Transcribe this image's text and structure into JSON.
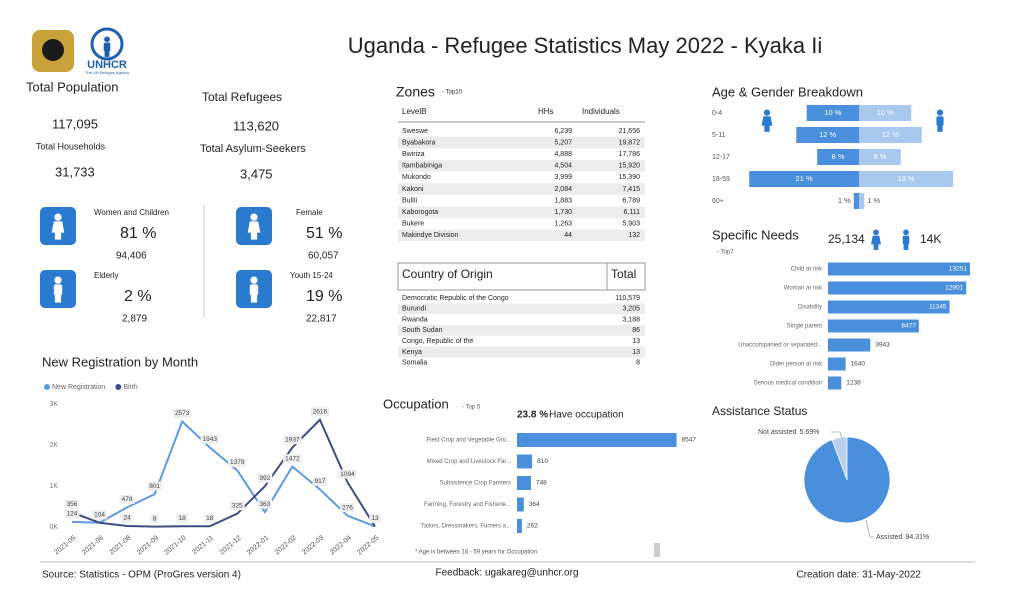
{
  "header": {
    "title": "Uganda - Refugee Statistics May 2022 - Kyaka Ii",
    "logo_text": "UNHCR",
    "logo_subtitle": "The UN Refugee Agency"
  },
  "kpis": [
    {
      "label": "Total Population",
      "value": "117,095"
    },
    {
      "label": "Total Households",
      "value": "31,733"
    },
    {
      "label": "Total Refugees",
      "value": "113,620"
    },
    {
      "label": "Total Asylum-Seekers",
      "value": "3,475"
    }
  ],
  "demographics": [
    {
      "label": "Women and Children",
      "percent": "81 %",
      "count": "94,406"
    },
    {
      "label": "Elderly",
      "percent": "2 %",
      "count": "2,879"
    },
    {
      "label": "Female",
      "percent": "51 %",
      "count": "60,057"
    },
    {
      "label": "Youth 15-24",
      "percent": "19 %",
      "count": "22,817"
    }
  ],
  "zones": {
    "title": "Zones",
    "subtitle": "- Top10",
    "columns": [
      "LevelB",
      "HHs",
      "Individuals"
    ],
    "rows": [
      [
        "Sweswe",
        "6,239",
        "21,656"
      ],
      [
        "Byabakora",
        "5,207",
        "19,872"
      ],
      [
        "Bwiriza",
        "4,888",
        "17,786"
      ],
      [
        "Itambabiniga",
        "4,504",
        "15,920"
      ],
      [
        "Mukondo",
        "3,999",
        "15,390"
      ],
      [
        "Kakoni",
        "2,084",
        "7,415"
      ],
      [
        "Buliti",
        "1,883",
        "6,789"
      ],
      [
        "Kaborogota",
        "1,730",
        "6,111"
      ],
      [
        "Bukere",
        "1,263",
        "5,903"
      ],
      [
        "Makindye Division",
        "44",
        "132"
      ]
    ]
  },
  "countries": {
    "columns": [
      "Country of Origin",
      "Total"
    ],
    "rows": [
      [
        "Democratic Republic of the Congo",
        "110,579"
      ],
      [
        "Burundi",
        "3,205"
      ],
      [
        "Rwanda",
        "3,188"
      ],
      [
        "South Sudan",
        "86"
      ],
      [
        "Congo, Republic of the",
        "13"
      ],
      [
        "Kenya",
        "13"
      ],
      [
        "Somalia",
        "8"
      ]
    ]
  },
  "chart_data": [
    {
      "type": "line",
      "title": "New Registration by Month",
      "categories": [
        "2021-05",
        "2021-06",
        "2021-08",
        "2021-09",
        "2021-10",
        "2021-11",
        "2021-12",
        "2022-01",
        "2022-02",
        "2022-03",
        "2022-04",
        "2022-05"
      ],
      "series": [
        {
          "name": "New Registration",
          "color": "#5b9be0",
          "values": [
            124,
            104,
            478,
            801,
            2573,
            1943,
            1379,
            363,
            1472,
            917,
            276,
            13
          ]
        },
        {
          "name": "Birth",
          "color": "#3f4d86",
          "values": [
            356,
            104,
            24,
            8,
            18,
            18,
            325,
            992,
            1937,
            2616,
            1094,
            13
          ]
        }
      ],
      "ylim": [
        0,
        3000
      ],
      "yticks": [
        {
          "value": 0,
          "label": "0K"
        },
        {
          "value": 1000,
          "label": "1K"
        },
        {
          "value": 2000,
          "label": "2K"
        },
        {
          "value": 3000,
          "label": "3K"
        }
      ],
      "legend": "top-left"
    },
    {
      "type": "butterfly",
      "title": "Age & Gender Breakdown",
      "categories": [
        "0-4",
        "5-11",
        "12-17",
        "18-59",
        "60+"
      ],
      "series": [
        {
          "color": "#4a8fdb",
          "values": [
            10,
            12,
            8,
            21,
            1
          ],
          "value_labels": [
            "10 %",
            "12 %",
            "8 %",
            "21 %",
            "1 %"
          ]
        },
        {
          "color": "#a9c8ef",
          "values": [
            10,
            12,
            8,
            18,
            1
          ],
          "value_labels": [
            "10 %",
            "12 %",
            "8 %",
            "18 %",
            "1 %"
          ]
        }
      ],
      "xlim": [
        0,
        22
      ]
    },
    {
      "type": "hbar",
      "title": "Specific Needs",
      "subtitle": "- Top7",
      "female_total": "25,134",
      "male_total": "14K",
      "categories": [
        "Child at risk",
        "Woman at risk",
        "Disability",
        "Single parent",
        "Unaccompanied or separated...",
        "Older person at risk",
        "Serious medical condition"
      ],
      "values": [
        13251,
        12901,
        11345,
        8477,
        3943,
        1640,
        1238
      ],
      "color": "#4a8fdb",
      "xlim": [
        0,
        14000
      ]
    },
    {
      "type": "hbar",
      "title": "Occupation",
      "subtitle": "- Top 5",
      "highlight_value": "23.8 %",
      "highlight_label": "Have occupation",
      "note": "* Age is between 18 - 59 years for Occupation",
      "categories": [
        "Field Crop and Vegetable Gro...",
        "Mixed Crop and Livestock Far...",
        "Subsistence Crop Farmers",
        "Farming, Forestry and Fisherie...",
        "Tailors, Dressmakers, Furriers a..."
      ],
      "values": [
        8547,
        810,
        748,
        364,
        262
      ],
      "color": "#4a8fdb",
      "xlim": [
        0,
        9000
      ]
    },
    {
      "type": "pie",
      "title": "Assistance Status",
      "categories": [
        "Not assisted",
        "Assisted"
      ],
      "values": [
        5.69,
        94.31
      ],
      "value_labels": [
        "5.69%",
        "94.31%"
      ],
      "colors": [
        "#b8d0ee",
        "#4a8fdb"
      ]
    }
  ],
  "footer": {
    "source": "Source: Statistics - OPM (ProGres version 4)",
    "feedback": "Feedback: ugakareg@unhcr.org",
    "created": "Creation date: 31-May-2022"
  }
}
